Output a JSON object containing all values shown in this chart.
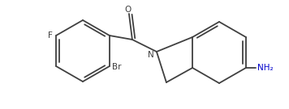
{
  "bg_color": "#ffffff",
  "line_color": "#404040",
  "atom_colors": {
    "Br": "#404040",
    "F": "#404040",
    "O": "#404040",
    "N": "#404040",
    "NH2": "#0000cc"
  },
  "figsize": [
    3.56,
    1.35
  ],
  "dpi": 100
}
